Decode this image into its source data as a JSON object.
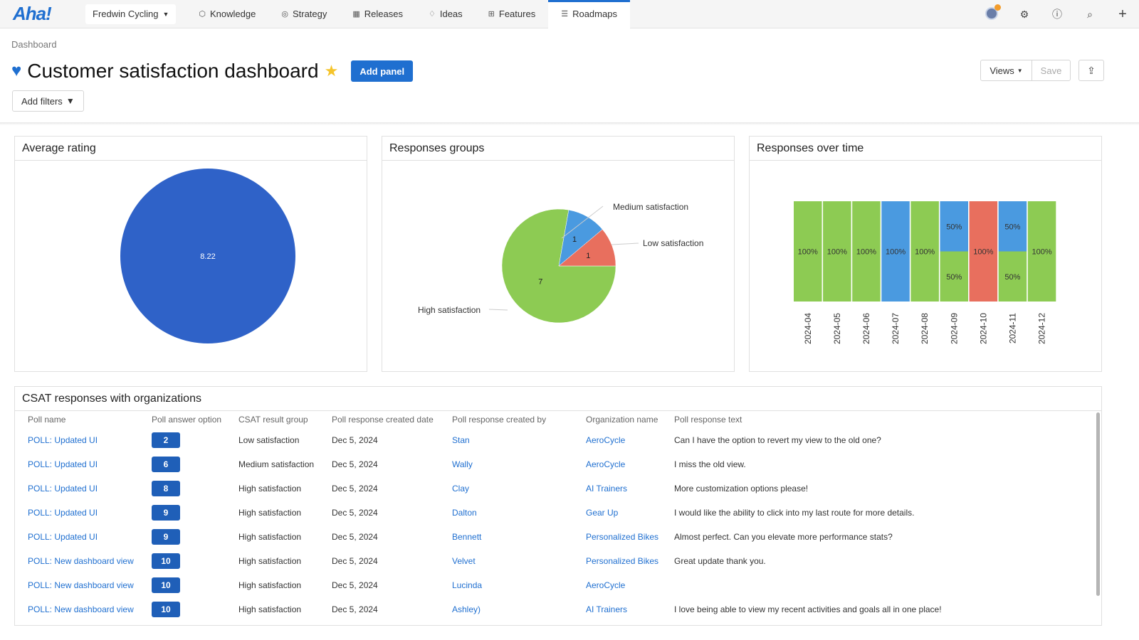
{
  "nav": {
    "logo": "Aha!",
    "workspace": "Fredwin Cycling",
    "items": [
      {
        "label": "Knowledge",
        "icon": "cube-icon"
      },
      {
        "label": "Strategy",
        "icon": "target-icon"
      },
      {
        "label": "Releases",
        "icon": "calendar-icon"
      },
      {
        "label": "Ideas",
        "icon": "lightbulb-icon"
      },
      {
        "label": "Features",
        "icon": "grid-icon"
      },
      {
        "label": "Roadmaps",
        "icon": "roadmap-icon",
        "active": true
      }
    ]
  },
  "header": {
    "breadcrumb": "Dashboard",
    "title": "Customer satisfaction dashboard",
    "add_panel": "Add panel",
    "add_filters": "Add filters",
    "views": "Views",
    "save": "Save"
  },
  "panels": {
    "avg": {
      "title": "Average rating"
    },
    "groups": {
      "title": "Responses groups"
    },
    "time": {
      "title": "Responses over time"
    },
    "table": {
      "title": "CSAT responses with organizations"
    }
  },
  "colors": {
    "green": "#8dcb53",
    "blue": "#4a9ae0",
    "red": "#e86f5e",
    "navy": "#2f62c8"
  },
  "chart_data": [
    {
      "type": "pie",
      "title": "Average rating",
      "values": [
        8.22
      ],
      "labels": [
        "8.22"
      ]
    },
    {
      "type": "pie",
      "title": "Responses groups",
      "categories": [
        "High satisfaction",
        "Medium satisfaction",
        "Low satisfaction"
      ],
      "values": [
        7,
        1,
        1
      ]
    },
    {
      "type": "bar",
      "title": "Responses over time",
      "stacked": "percent",
      "categories": [
        "2024-04",
        "2024-05",
        "2024-06",
        "2024-07",
        "2024-08",
        "2024-09",
        "2024-10",
        "2024-11",
        "2024-12"
      ],
      "series": [
        {
          "name": "High satisfaction",
          "values": [
            100,
            100,
            100,
            0,
            100,
            50,
            0,
            50,
            100
          ]
        },
        {
          "name": "Medium satisfaction",
          "values": [
            0,
            0,
            0,
            100,
            0,
            50,
            0,
            50,
            0
          ]
        },
        {
          "name": "Low satisfaction",
          "values": [
            0,
            0,
            0,
            0,
            0,
            0,
            100,
            0,
            0
          ]
        }
      ]
    }
  ],
  "table": {
    "columns": [
      "Poll name",
      "Poll answer option",
      "CSAT result group",
      "Poll response created date",
      "Poll response created by",
      "Organization name",
      "Poll response text"
    ],
    "rows": [
      [
        "POLL: Updated UI",
        "2",
        "Low satisfaction",
        "Dec 5, 2024",
        "Stan",
        "AeroCycle",
        "Can I have the option to revert my view to the old one?"
      ],
      [
        "POLL: Updated UI",
        "6",
        "Medium satisfaction",
        "Dec 5, 2024",
        "Wally",
        "AeroCycle",
        "I miss the old view."
      ],
      [
        "POLL: Updated UI",
        "8",
        "High satisfaction",
        "Dec 5, 2024",
        "Clay",
        "AI Trainers",
        "More customization options please!"
      ],
      [
        "POLL: Updated UI",
        "9",
        "High satisfaction",
        "Dec 5, 2024",
        "Dalton",
        "Gear Up",
        "I would like the ability to click into my last route for more details."
      ],
      [
        "POLL: Updated UI",
        "9",
        "High satisfaction",
        "Dec 5, 2024",
        "Bennett",
        "Personalized Bikes",
        "Almost perfect. Can you elevate more performance stats?"
      ],
      [
        "POLL: New dashboard view",
        "10",
        "High satisfaction",
        "Dec 5, 2024",
        "Velvet",
        "Personalized Bikes",
        "Great update thank you."
      ],
      [
        "POLL: New dashboard view",
        "10",
        "High satisfaction",
        "Dec 5, 2024",
        "Lucinda",
        "AeroCycle",
        ""
      ],
      [
        "POLL: New dashboard view",
        "10",
        "High satisfaction",
        "Dec 5, 2024",
        "Ashley)",
        "AI Trainers",
        "I love being able to view my recent activities and goals all in one place!"
      ]
    ]
  }
}
